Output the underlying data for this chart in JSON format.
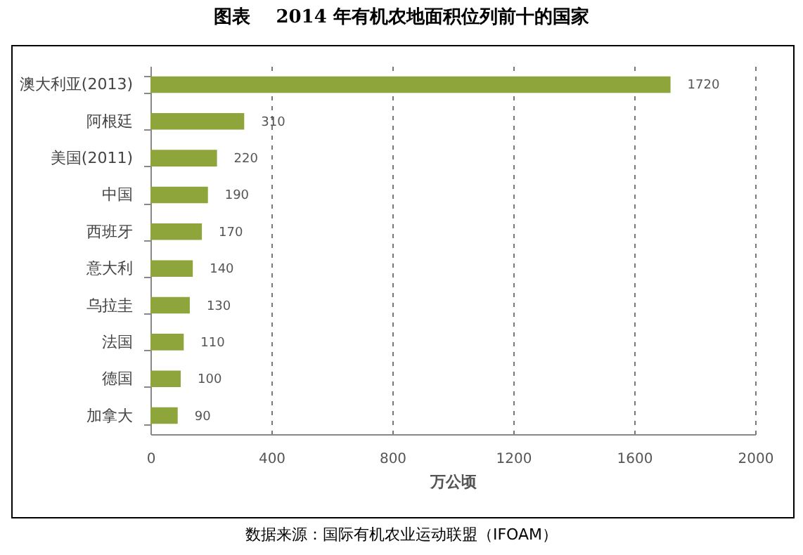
{
  "chart_data": {
    "type": "bar",
    "orientation": "horizontal",
    "title": "图表    2014 年有机农地面积位列前十的国家",
    "xlabel": "万公顷",
    "categories": [
      "澳大利亚(2013)",
      "阿根廷",
      "美国(2011)",
      "中国",
      "西班牙",
      "意大利",
      "乌拉圭",
      "法国",
      "德国",
      "加拿大"
    ],
    "values": [
      1720,
      310,
      220,
      190,
      170,
      140,
      130,
      110,
      100,
      90
    ],
    "color": "#8da53a",
    "xlim": [
      0,
      2000
    ],
    "xticks": [
      0,
      400,
      800,
      1200,
      1600,
      2000
    ],
    "grid": "x",
    "data_labels": true,
    "annotations": [
      "数据来源：国际有机农业运动联盟（IFOAM）"
    ]
  }
}
